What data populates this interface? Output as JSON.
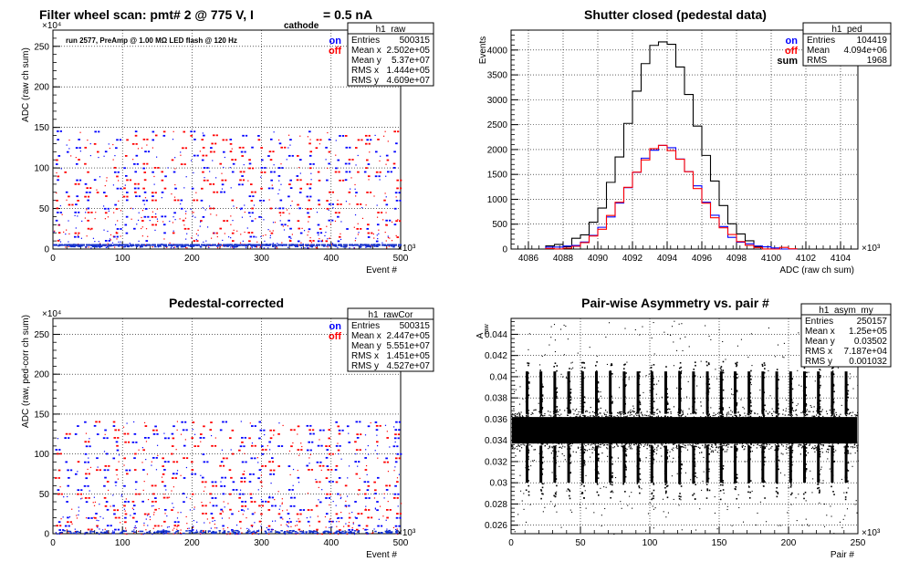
{
  "chart_data": [
    {
      "type": "scatter",
      "id": "raw",
      "title_text": "Filter wheel scan: pmt#   2 @   775 V, I",
      "title_sub": "cathode",
      "title_tail": "  = 0.5 nA",
      "note": "run 2577, PreAmp @ 1.00 MΩ  LED flash @  120 Hz",
      "xlabel": "Event #",
      "ylabel": "ADC (raw ch sum)",
      "xlim": [
        0,
        500000
      ],
      "ylim": [
        0,
        2700000
      ],
      "x_exponent": "×10³",
      "y_exponent": "×10⁴",
      "xticks": [
        0,
        100,
        200,
        300,
        400,
        500
      ],
      "yticks": [
        0,
        50,
        100,
        150,
        200,
        250
      ],
      "grid": true,
      "legend": [
        "on",
        "off"
      ],
      "stats": {
        "name": "h1_raw",
        "rows": [
          [
            "Entries",
            "500315"
          ],
          [
            "Mean x",
            "2.502e+05"
          ],
          [
            "Mean y",
            "5.37e+07"
          ],
          [
            "RMS x",
            "1.444e+05"
          ],
          [
            "RMS y",
            "4.609e+07"
          ]
        ]
      },
      "band_levels_e4": [
        5,
        10,
        15,
        20,
        25,
        30,
        35,
        40,
        45,
        50,
        55,
        60,
        65,
        70,
        75,
        80,
        85,
        90,
        95,
        100,
        105,
        110,
        115,
        120,
        125,
        130,
        135,
        140,
        145
      ],
      "baseline_e4": 2
    },
    {
      "type": "line",
      "id": "ped",
      "title_text": "Shutter closed (pedestal data)",
      "xlabel": "ADC (raw ch sum)",
      "ylabel": "Events",
      "xlim": [
        4085000,
        4105000
      ],
      "ylim": [
        0,
        4400
      ],
      "x_exponent": "×10³",
      "xticks": [
        4086,
        4088,
        4090,
        4092,
        4094,
        4096,
        4098,
        4100,
        4102,
        4104
      ],
      "yticks": [
        0,
        500,
        1000,
        1500,
        2000,
        2500,
        3000,
        3500,
        4000
      ],
      "grid": true,
      "legend": [
        "on",
        "off",
        "sum"
      ],
      "stats": {
        "name": "h1_ped",
        "rows": [
          [
            "Entries",
            "104419"
          ],
          [
            "Mean",
            "4.094e+06"
          ],
          [
            "RMS",
            "1968"
          ]
        ]
      },
      "series": [
        {
          "name": "sum",
          "color": "#000000",
          "mean": 4094000,
          "rms": 1968,
          "peak": 4200
        },
        {
          "name": "on",
          "color": "#0000ff",
          "mean": 4094000,
          "rms": 1968,
          "peak": 2080
        },
        {
          "name": "off",
          "color": "#ff0000",
          "mean": 4094000,
          "rms": 1968,
          "peak": 2070
        }
      ]
    },
    {
      "type": "scatter",
      "id": "rawcor",
      "title_text": "Pedestal-corrected",
      "xlabel": "Event #",
      "ylabel": "ADC (raw, ped-corr ch sum)",
      "xlim": [
        0,
        500000
      ],
      "ylim": [
        0,
        2700000
      ],
      "x_exponent": "×10³",
      "y_exponent": "×10⁴",
      "xticks": [
        0,
        100,
        200,
        300,
        400,
        500
      ],
      "yticks": [
        0,
        50,
        100,
        150,
        200,
        250
      ],
      "grid": true,
      "legend": [
        "on",
        "off"
      ],
      "stats": {
        "name": "h1_rawCor",
        "rows": [
          [
            "Entries",
            "500315"
          ],
          [
            "Mean x",
            "2.447e+05"
          ],
          [
            "Mean y",
            "5.551e+07"
          ],
          [
            "RMS x",
            "1.451e+05"
          ],
          [
            "RMS y",
            "4.527e+07"
          ]
        ]
      },
      "band_levels_e4": [
        5,
        10,
        15,
        20,
        25,
        30,
        35,
        40,
        45,
        50,
        55,
        60,
        65,
        70,
        75,
        80,
        85,
        90,
        95,
        100,
        105,
        110,
        115,
        120,
        125,
        130,
        135,
        140
      ],
      "baseline_e4": 0
    },
    {
      "type": "scatter",
      "id": "asym",
      "title_text": "Pair-wise Asymmetry vs. pair #",
      "xlabel": "Pair #",
      "ylabel": "A",
      "ylabel_sub": "raw",
      "xlim": [
        0,
        250000
      ],
      "ylim": [
        0.0252,
        0.0455
      ],
      "x_exponent": "×10³",
      "xticks": [
        0,
        50,
        100,
        150,
        200,
        250
      ],
      "yticks": [
        0.026,
        0.028,
        0.03,
        0.032,
        0.034,
        0.036,
        0.038,
        0.04,
        0.042,
        0.044
      ],
      "grid": true,
      "stats": {
        "name": "h1_asym_my",
        "rows": [
          [
            "Entries",
            "250157"
          ],
          [
            "Mean x",
            "1.25e+05"
          ],
          [
            "Mean y",
            "0.03502"
          ],
          [
            "RMS x",
            "7.187e+04"
          ],
          [
            "RMS y",
            "0.001032"
          ]
        ]
      },
      "band_center": 0.035,
      "spike_period_pairs": 10000
    }
  ]
}
